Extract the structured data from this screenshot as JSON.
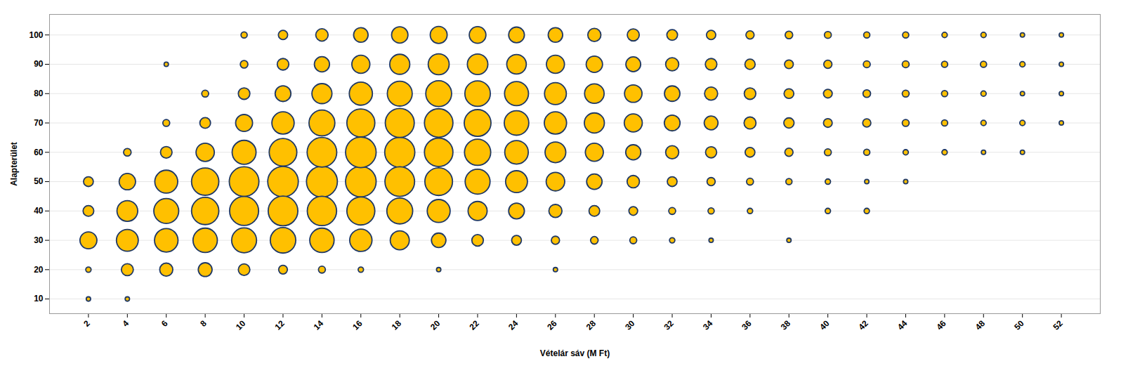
{
  "chart_data": {
    "type": "bubble",
    "xlabel": "Vételár sáv (M Ft)",
    "ylabel": "Alapterület",
    "color": "#FFC000",
    "xlim": [
      0,
      54
    ],
    "ylim": [
      5,
      107
    ],
    "xticks": [
      2,
      4,
      6,
      8,
      10,
      12,
      14,
      16,
      18,
      20,
      22,
      24,
      26,
      28,
      30,
      32,
      34,
      36,
      38,
      40,
      42,
      44,
      46,
      48,
      50,
      52
    ],
    "yticks": [
      10,
      20,
      30,
      40,
      50,
      60,
      70,
      80,
      90,
      100
    ],
    "grid": true,
    "x": [
      2,
      4,
      2,
      4,
      6,
      8,
      10,
      12,
      14,
      16,
      20,
      26,
      2,
      4,
      6,
      8,
      10,
      12,
      14,
      16,
      18,
      20,
      22,
      24,
      26,
      28,
      30,
      32,
      34,
      38,
      2,
      4,
      6,
      8,
      10,
      12,
      14,
      16,
      18,
      20,
      22,
      24,
      26,
      28,
      30,
      32,
      34,
      36,
      40,
      42,
      2,
      4,
      6,
      8,
      10,
      12,
      14,
      16,
      18,
      20,
      22,
      24,
      26,
      28,
      30,
      32,
      34,
      36,
      38,
      40,
      42,
      44,
      4,
      6,
      8,
      10,
      12,
      14,
      16,
      18,
      20,
      22,
      24,
      26,
      28,
      30,
      32,
      34,
      36,
      38,
      40,
      42,
      44,
      46,
      48,
      50,
      6,
      8,
      10,
      12,
      14,
      16,
      18,
      20,
      22,
      24,
      26,
      28,
      30,
      32,
      34,
      36,
      38,
      40,
      42,
      44,
      46,
      48,
      50,
      52,
      8,
      10,
      12,
      14,
      16,
      18,
      20,
      22,
      24,
      26,
      28,
      30,
      32,
      34,
      36,
      38,
      40,
      42,
      44,
      46,
      48,
      50,
      52,
      6,
      10,
      12,
      14,
      16,
      18,
      20,
      22,
      24,
      26,
      28,
      30,
      32,
      34,
      36,
      38,
      40,
      42,
      44,
      46,
      48,
      50,
      52,
      10,
      12,
      14,
      16,
      18,
      20,
      22,
      24,
      26,
      28,
      30,
      32,
      34,
      36,
      38,
      40,
      42,
      44,
      46,
      48,
      50,
      52
    ],
    "y": [
      10,
      10,
      20,
      20,
      20,
      20,
      20,
      20,
      20,
      20,
      20,
      20,
      30,
      30,
      30,
      30,
      30,
      30,
      30,
      30,
      30,
      30,
      30,
      30,
      30,
      30,
      30,
      30,
      30,
      30,
      40,
      40,
      40,
      40,
      40,
      40,
      40,
      40,
      40,
      40,
      40,
      40,
      40,
      40,
      40,
      40,
      40,
      40,
      40,
      40,
      50,
      50,
      50,
      50,
      50,
      50,
      50,
      50,
      50,
      50,
      50,
      50,
      50,
      50,
      50,
      50,
      50,
      50,
      50,
      50,
      50,
      50,
      60,
      60,
      60,
      60,
      60,
      60,
      60,
      60,
      60,
      60,
      60,
      60,
      60,
      60,
      60,
      60,
      60,
      60,
      60,
      60,
      60,
      60,
      60,
      60,
      70,
      70,
      70,
      70,
      70,
      70,
      70,
      70,
      70,
      70,
      70,
      70,
      70,
      70,
      70,
      70,
      70,
      70,
      70,
      70,
      70,
      70,
      70,
      70,
      80,
      80,
      80,
      80,
      80,
      80,
      80,
      80,
      80,
      80,
      80,
      80,
      80,
      80,
      80,
      80,
      80,
      80,
      80,
      80,
      80,
      80,
      80,
      90,
      90,
      90,
      90,
      90,
      90,
      90,
      90,
      90,
      90,
      90,
      90,
      90,
      90,
      90,
      90,
      90,
      90,
      90,
      90,
      90,
      90,
      90,
      100,
      100,
      100,
      100,
      100,
      100,
      100,
      100,
      100,
      100,
      100,
      100,
      100,
      100,
      100,
      100,
      100,
      100,
      100,
      100,
      100,
      100
    ],
    "sizes": [
      2,
      2,
      3,
      15,
      18,
      20,
      14,
      8,
      5,
      3,
      2,
      2,
      30,
      50,
      58,
      62,
      65,
      68,
      62,
      52,
      38,
      22,
      14,
      10,
      7,
      6,
      5,
      3,
      2,
      2,
      12,
      45,
      65,
      78,
      88,
      92,
      90,
      82,
      70,
      55,
      38,
      26,
      18,
      12,
      8,
      5,
      4,
      3,
      3,
      3,
      10,
      28,
      55,
      78,
      92,
      98,
      100,
      98,
      92,
      80,
      65,
      50,
      36,
      25,
      16,
      10,
      7,
      5,
      4,
      3,
      2,
      2,
      6,
      14,
      35,
      60,
      80,
      92,
      98,
      95,
      85,
      72,
      58,
      45,
      34,
      24,
      18,
      13,
      10,
      7,
      5,
      4,
      3,
      3,
      2,
      2,
      5,
      12,
      30,
      52,
      70,
      82,
      88,
      85,
      75,
      63,
      52,
      42,
      34,
      26,
      20,
      15,
      11,
      8,
      7,
      5,
      4,
      3,
      3,
      2,
      5,
      14,
      26,
      42,
      56,
      65,
      70,
      68,
      60,
      50,
      40,
      32,
      25,
      18,
      14,
      10,
      8,
      6,
      5,
      4,
      3,
      2,
      2,
      2,
      6,
      14,
      24,
      34,
      42,
      46,
      44,
      40,
      34,
      28,
      23,
      18,
      14,
      11,
      8,
      7,
      5,
      5,
      4,
      4,
      3,
      2,
      4,
      9,
      16,
      22,
      28,
      30,
      29,
      26,
      22,
      18,
      15,
      12,
      9,
      7,
      6,
      5,
      4,
      4,
      3,
      3,
      2,
      2
    ]
  }
}
